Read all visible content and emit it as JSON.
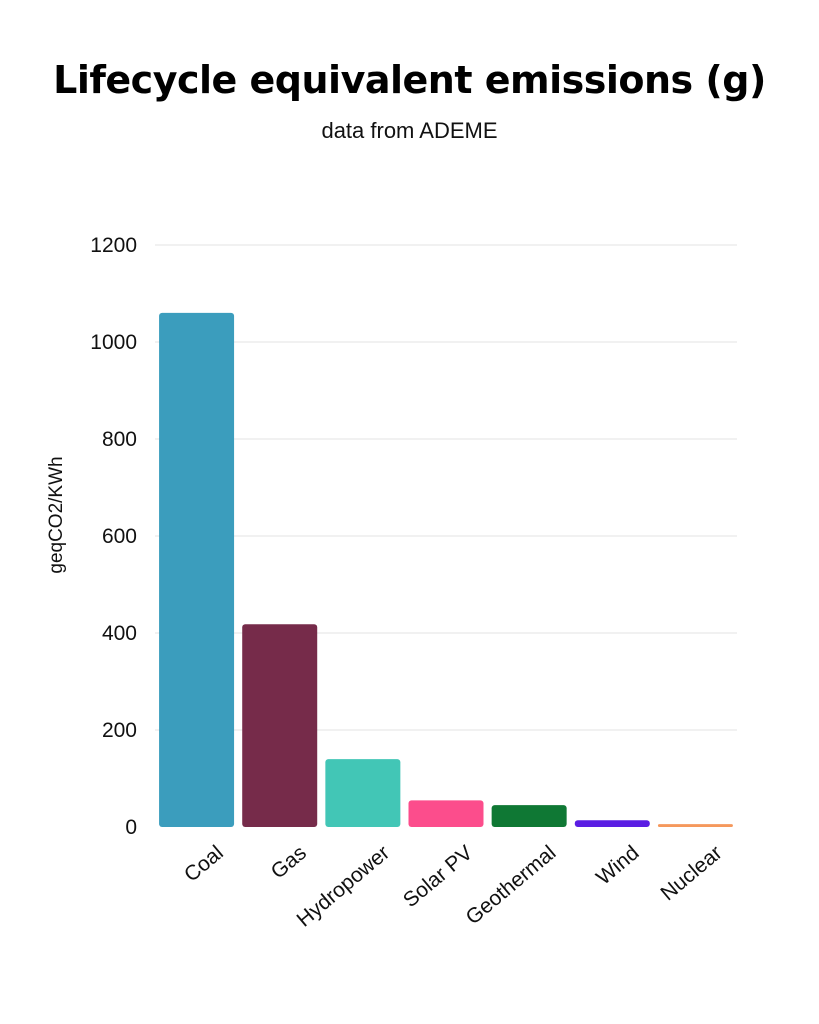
{
  "chart_data": {
    "type": "bar",
    "title": "Lifecycle equivalent emissions (g)",
    "subtitle": "data from ADEME",
    "xlabel": "",
    "ylabel": "geqCO2/KWh",
    "ylim": [
      0,
      1200
    ],
    "yticks": [
      0,
      200,
      400,
      600,
      800,
      1000,
      1200
    ],
    "grid": true,
    "categories": [
      "Coal",
      "Gas",
      "Hydropower",
      "Solar PV",
      "Geothermal",
      "Wind",
      "Nuclear"
    ],
    "values": [
      1060,
      418,
      140,
      55,
      45,
      14,
      6
    ],
    "colors": [
      "#3b9dbd",
      "#762b4a",
      "#42c6b6",
      "#fc4d8c",
      "#0f7834",
      "#5a1de3",
      "#f5985c"
    ]
  }
}
